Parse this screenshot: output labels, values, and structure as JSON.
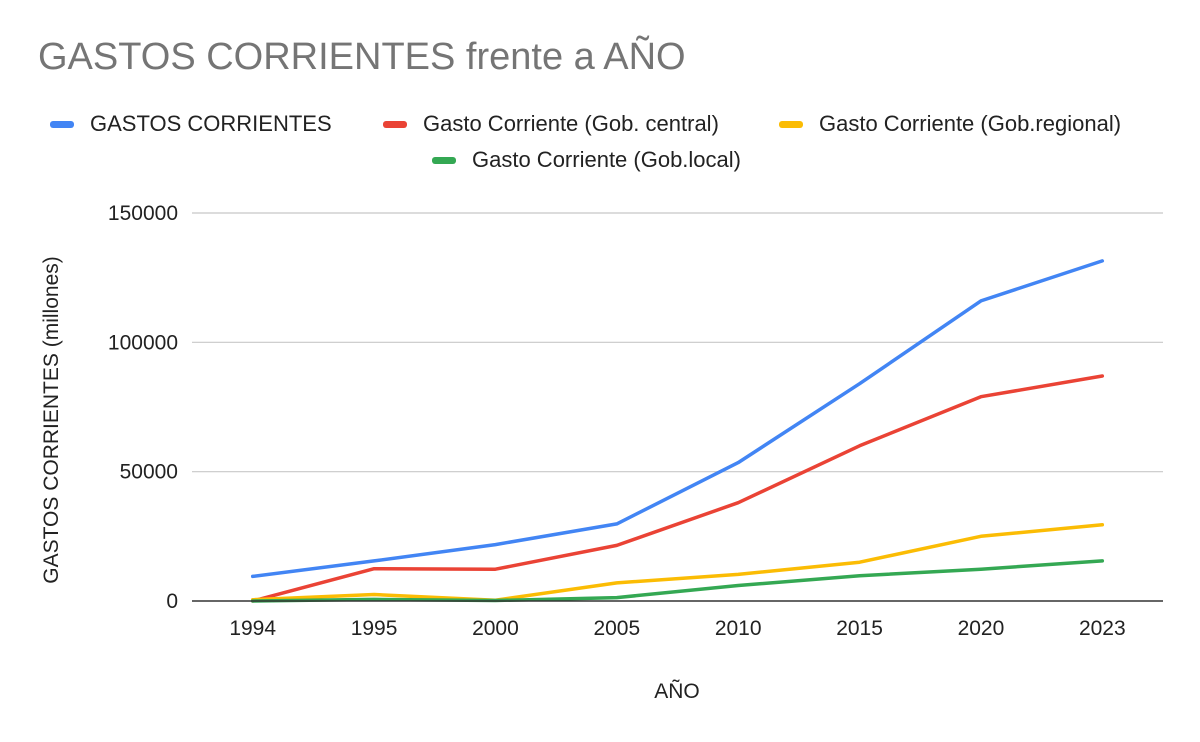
{
  "chart_data": {
    "type": "line",
    "title": "GASTOS CORRIENTES frente a AÑO",
    "xlabel": "AÑO",
    "ylabel": "GASTOS CORRIENTES (millones)",
    "categories": [
      "1994",
      "1995",
      "2000",
      "2005",
      "2010",
      "2015",
      "2020",
      "2023"
    ],
    "yticks": [
      "0",
      "50000",
      "100000",
      "150000"
    ],
    "ylim": [
      0,
      150000
    ],
    "grid": true,
    "legend_position": "top",
    "series": [
      {
        "name": "GASTOS CORRIENTES",
        "color": "#4285F4",
        "values": [
          9500,
          15500,
          21800,
          29800,
          53500,
          84000,
          116000,
          131500
        ]
      },
      {
        "name": "Gasto Corriente (Gob. central)",
        "color": "#EA4335",
        "values": [
          0,
          12500,
          12300,
          21500,
          38000,
          60000,
          79000,
          87000
        ]
      },
      {
        "name": "Gasto Corriente (Gob.regional)",
        "color": "#FBBC04",
        "values": [
          500,
          2500,
          300,
          7000,
          10300,
          15000,
          25000,
          29500
        ]
      },
      {
        "name": "Gasto Corriente (Gob.local)",
        "color": "#34A853",
        "values": [
          0,
          600,
          200,
          1300,
          6000,
          9800,
          12300,
          15500
        ]
      }
    ]
  }
}
